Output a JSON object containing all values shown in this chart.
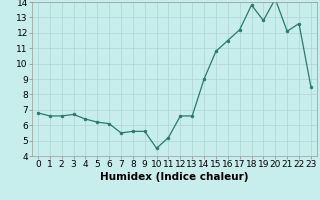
{
  "x": [
    0,
    1,
    2,
    3,
    4,
    5,
    6,
    7,
    8,
    9,
    10,
    11,
    12,
    13,
    14,
    15,
    16,
    17,
    18,
    19,
    20,
    21,
    22,
    23
  ],
  "y": [
    6.8,
    6.6,
    6.6,
    6.7,
    6.4,
    6.2,
    6.1,
    5.5,
    5.6,
    5.6,
    4.5,
    5.2,
    6.6,
    6.6,
    9.0,
    10.8,
    11.5,
    12.2,
    13.8,
    12.8,
    14.2,
    12.1,
    12.6,
    8.5
  ],
  "xlabel": "Humidex (Indice chaleur)",
  "ylim": [
    4,
    14
  ],
  "xlim": [
    -0.5,
    23.5
  ],
  "yticks": [
    4,
    5,
    6,
    7,
    8,
    9,
    10,
    11,
    12,
    13,
    14
  ],
  "xticks": [
    0,
    1,
    2,
    3,
    4,
    5,
    6,
    7,
    8,
    9,
    10,
    11,
    12,
    13,
    14,
    15,
    16,
    17,
    18,
    19,
    20,
    21,
    22,
    23
  ],
  "line_color": "#2a7a6a",
  "bg_color": "#c8eded",
  "grid_color": "#aed4d4",
  "xlabel_fontsize": 7.5,
  "tick_fontsize": 6.5
}
